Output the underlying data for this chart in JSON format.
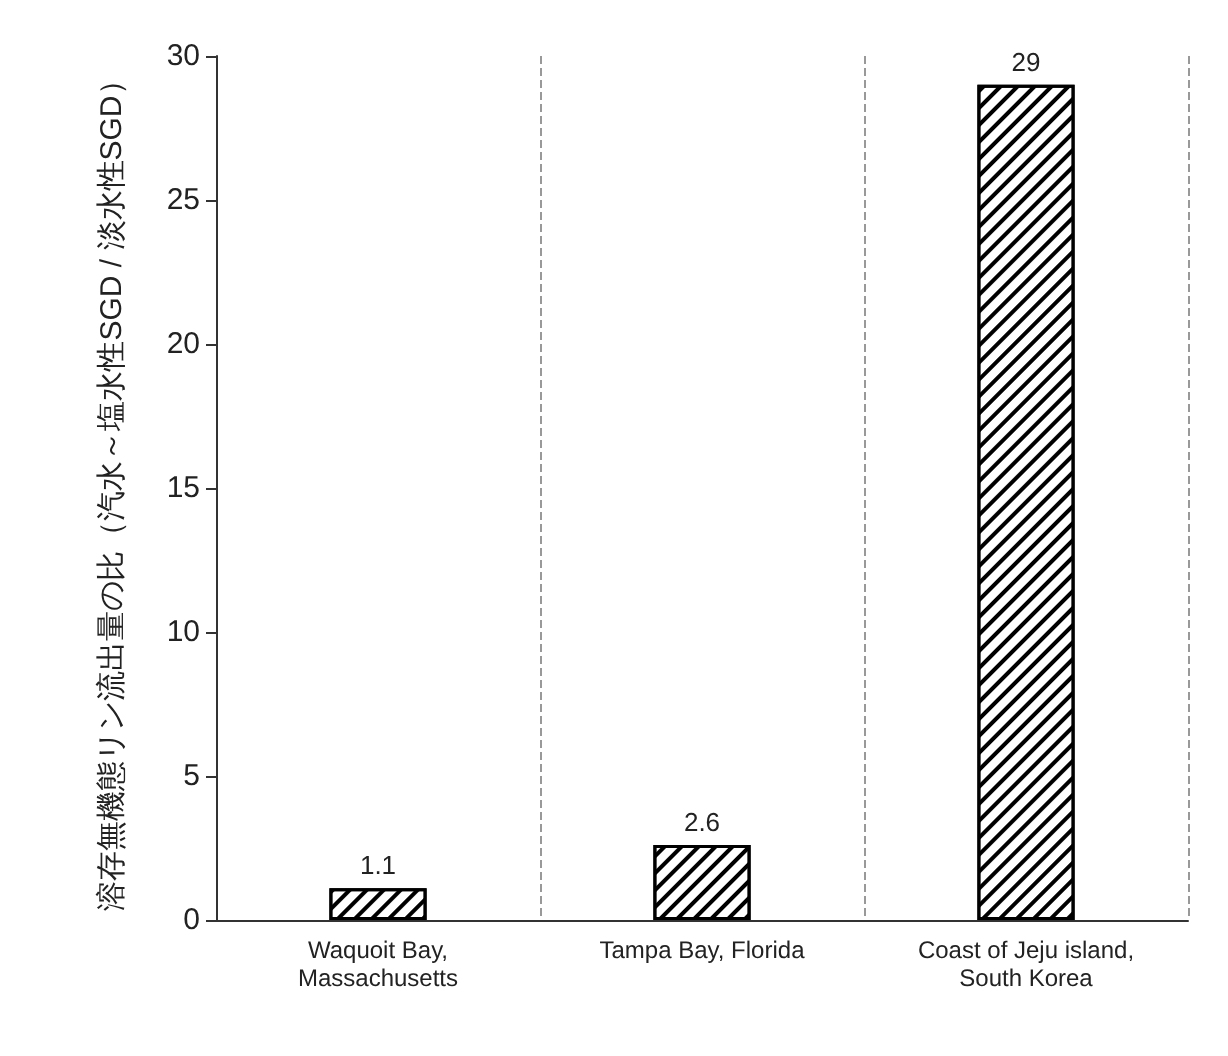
{
  "chart_data": {
    "type": "bar",
    "ylabel": "溶存無機態リン流出量の比（汽水～塩水性SGD / 淡水性SGD）",
    "categories": [
      "Waquoit Bay,\nMassachusetts",
      "Tampa Bay, Florida",
      "Coast of Jeju island,\nSouth Korea"
    ],
    "values": [
      1.1,
      2.6,
      29
    ],
    "color": "#000000",
    "ylim": [
      0,
      30
    ],
    "yticks": [
      0,
      5,
      10,
      15,
      20,
      25,
      30
    ],
    "grid": "x",
    "data_labels": true
  }
}
